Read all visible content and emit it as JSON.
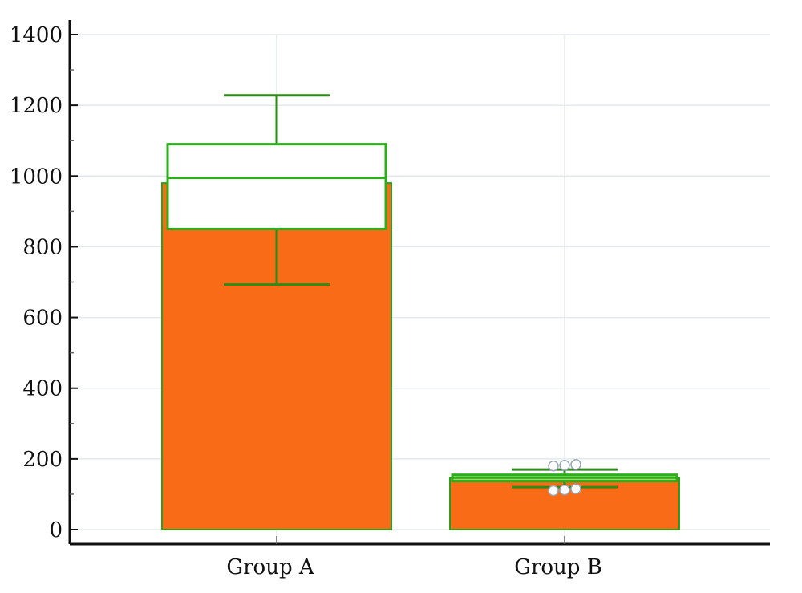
{
  "chart_data": {
    "type": "bar",
    "title": "",
    "xlabel": "",
    "ylabel": "",
    "categories": [
      "Group A",
      "Group B"
    ],
    "values": [
      980,
      147
    ],
    "ylim": [
      0,
      1400
    ],
    "yticks": [
      "0",
      "200",
      "400",
      "600",
      "800",
      "1000",
      "1200",
      "1400"
    ],
    "grid": true,
    "boxplots": [
      {
        "category": "Group A",
        "whisker_low": 693,
        "q1": 850,
        "median": 995,
        "q3": 1090,
        "whisker_high": 1228,
        "outliers": []
      },
      {
        "category": "Group B",
        "whisker_low": 120,
        "q1": 137,
        "median": 147,
        "q3": 155,
        "whisker_high": 170,
        "outliers": [
          110,
          112,
          115,
          180,
          182,
          184
        ]
      }
    ],
    "colors": {
      "bar": "#F96B16",
      "bar_edge": "#2E9E1E",
      "box": "#2AAE1A",
      "whisker": "#2E8B1A",
      "grid": "#E2E8EE",
      "axis": "#111111"
    }
  }
}
